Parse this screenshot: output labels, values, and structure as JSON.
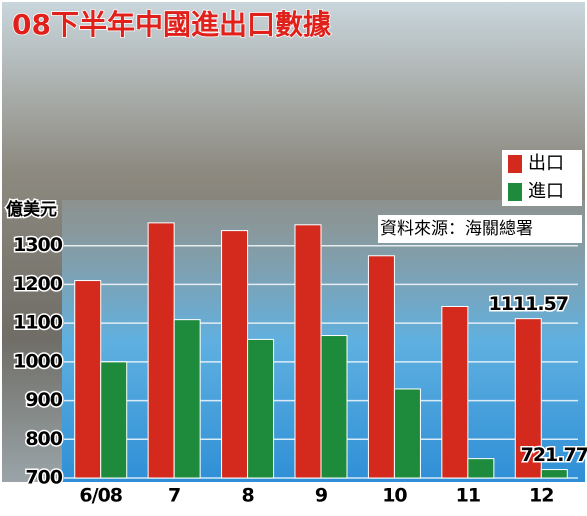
{
  "chart_data": {
    "type": "bar",
    "title": "08下半年中國進出口數據",
    "y_label": "億美元",
    "source": "資料來源：海關總署",
    "categories": [
      "6/08",
      "7",
      "8",
      "9",
      "10",
      "11",
      "12"
    ],
    "series": [
      {
        "name": "出口",
        "color": "#d42a1e",
        "values": [
          1210,
          1359,
          1339,
          1354,
          1274,
          1143,
          1111.57
        ],
        "value_labels": [
          null,
          null,
          null,
          null,
          null,
          null,
          "1111.57"
        ]
      },
      {
        "name": "進口",
        "color": "#1e8a3c",
        "values": [
          1000,
          1109,
          1058,
          1068,
          930,
          750,
          721.77
        ],
        "value_labels": [
          null,
          null,
          null,
          null,
          null,
          null,
          "721.77"
        ]
      }
    ],
    "ylim": [
      700,
      1400
    ],
    "yticks": [
      700,
      800,
      900,
      1000,
      1100,
      1200,
      1300
    ],
    "grid": true
  }
}
